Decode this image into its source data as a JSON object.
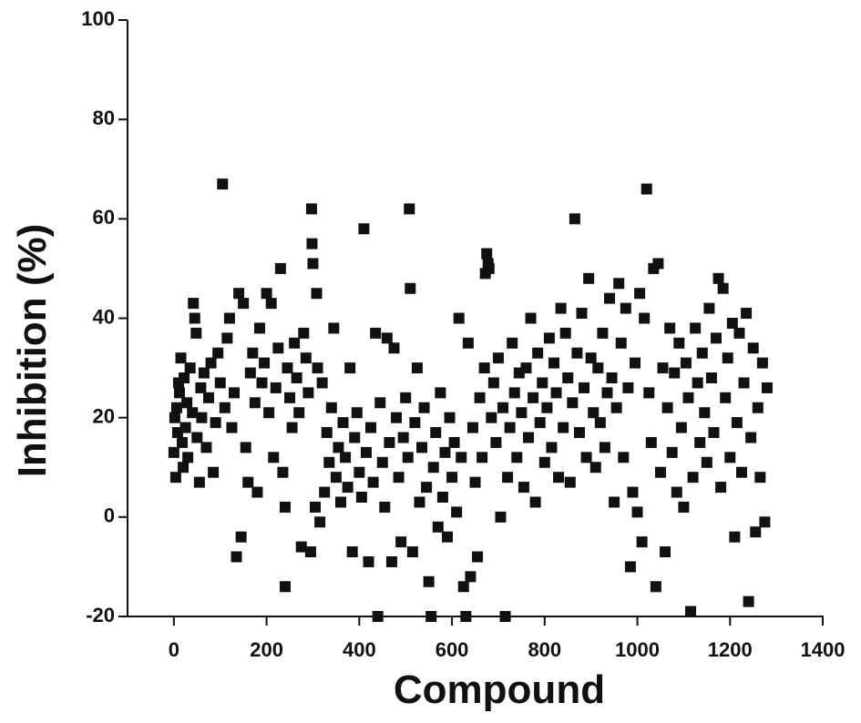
{
  "chart_data": {
    "type": "scatter",
    "xlabel": "Compound",
    "ylabel": "Inhibition (%)",
    "xlim": [
      -100,
      1400
    ],
    "ylim": [
      -20,
      100
    ],
    "xticks": [
      0,
      200,
      400,
      600,
      800,
      1000,
      1200,
      1400
    ],
    "yticks": [
      -20,
      0,
      20,
      40,
      60,
      80,
      100
    ],
    "series": [
      {
        "color": "#111111",
        "x": [
          0,
          2,
          4,
          6,
          8,
          10,
          12,
          15,
          18,
          20,
          22,
          25,
          28,
          30,
          35,
          40,
          42,
          45,
          48,
          50,
          55,
          58,
          60,
          65,
          70,
          75,
          80,
          85,
          90,
          95,
          100,
          105,
          110,
          115,
          120,
          125,
          130,
          135,
          140,
          145,
          150,
          155,
          160,
          165,
          170,
          175,
          180,
          185,
          190,
          195,
          200,
          205,
          210,
          215,
          220,
          225,
          230,
          235,
          240,
          240,
          245,
          250,
          255,
          260,
          265,
          270,
          275,
          280,
          285,
          290,
          295,
          297,
          298,
          300,
          305,
          308,
          310,
          315,
          320,
          325,
          330,
          335,
          340,
          345,
          350,
          355,
          360,
          365,
          370,
          375,
          380,
          385,
          390,
          395,
          400,
          405,
          410,
          415,
          420,
          425,
          430,
          435,
          440,
          445,
          450,
          455,
          460,
          465,
          470,
          475,
          480,
          485,
          490,
          495,
          500,
          505,
          508,
          510,
          515,
          520,
          525,
          530,
          535,
          540,
          545,
          550,
          555,
          560,
          565,
          570,
          575,
          580,
          585,
          590,
          595,
          600,
          605,
          610,
          615,
          620,
          625,
          630,
          635,
          640,
          645,
          650,
          655,
          660,
          665,
          670,
          672,
          675,
          678,
          680,
          685,
          690,
          695,
          700,
          705,
          710,
          715,
          720,
          725,
          730,
          735,
          740,
          745,
          750,
          755,
          760,
          765,
          770,
          775,
          780,
          785,
          790,
          795,
          800,
          805,
          810,
          815,
          820,
          825,
          830,
          835,
          840,
          845,
          850,
          855,
          860,
          865,
          870,
          875,
          880,
          885,
          890,
          895,
          900,
          905,
          910,
          915,
          920,
          925,
          930,
          935,
          940,
          945,
          950,
          955,
          960,
          965,
          970,
          975,
          980,
          985,
          990,
          995,
          1000,
          1005,
          1010,
          1015,
          1020,
          1025,
          1030,
          1035,
          1040,
          1045,
          1050,
          1055,
          1060,
          1065,
          1070,
          1075,
          1080,
          1085,
          1090,
          1095,
          1100,
          1105,
          1110,
          1115,
          1120,
          1125,
          1130,
          1135,
          1140,
          1145,
          1150,
          1155,
          1160,
          1165,
          1170,
          1175,
          1180,
          1185,
          1190,
          1195,
          1200,
          1205,
          1210,
          1215,
          1220,
          1225,
          1230,
          1235,
          1240,
          1245,
          1250,
          1255,
          1260,
          1265,
          1270,
          1275,
          1280
        ],
        "y": [
          13,
          20,
          8,
          22,
          17,
          27,
          25,
          32,
          15,
          10,
          28,
          18,
          23,
          12,
          30,
          21,
          43,
          40,
          37,
          16,
          7,
          26,
          20,
          29,
          14,
          24,
          31,
          9,
          19,
          33,
          27,
          67,
          22,
          36,
          40,
          18,
          25,
          -8,
          45,
          -4,
          43,
          14,
          7,
          29,
          33,
          23,
          5,
          38,
          27,
          31,
          45,
          21,
          43,
          12,
          26,
          34,
          50,
          9,
          -14,
          2,
          30,
          24,
          18,
          35,
          28,
          21,
          -6,
          37,
          32,
          25,
          -7,
          62,
          55,
          51,
          2,
          45,
          30,
          -1,
          27,
          5,
          17,
          11,
          22,
          38,
          8,
          14,
          3,
          19,
          12,
          6,
          30,
          -7,
          16,
          21,
          9,
          4,
          58,
          13,
          -9,
          18,
          7,
          37,
          -20,
          23,
          11,
          2,
          36,
          15,
          -9,
          34,
          20,
          8,
          -5,
          16,
          24,
          12,
          62,
          46,
          -7,
          19,
          30,
          3,
          14,
          22,
          6,
          -13,
          -20,
          10,
          17,
          -2,
          25,
          4,
          13,
          -4,
          20,
          8,
          15,
          1,
          40,
          12,
          -14,
          -20,
          35,
          -12,
          18,
          7,
          -8,
          24,
          12,
          30,
          49,
          53,
          51,
          50,
          20,
          27,
          15,
          32,
          0,
          22,
          -20,
          8,
          18,
          35,
          25,
          12,
          29,
          21,
          6,
          30,
          16,
          40,
          24,
          3,
          33,
          19,
          27,
          11,
          22,
          36,
          14,
          31,
          25,
          8,
          42,
          18,
          37,
          28,
          7,
          23,
          60,
          33,
          17,
          41,
          26,
          12,
          48,
          32,
          21,
          10,
          30,
          19,
          37,
          14,
          25,
          44,
          28,
          3,
          22,
          47,
          35,
          12,
          42,
          26,
          -10,
          5,
          31,
          1,
          45,
          -5,
          40,
          66,
          25,
          15,
          50,
          -14,
          51,
          9,
          30,
          -7,
          22,
          38,
          13,
          29,
          5,
          35,
          18,
          2,
          31,
          24,
          -19,
          8,
          38,
          27,
          15,
          33,
          21,
          11,
          42,
          28,
          17,
          36,
          48,
          6,
          46,
          24,
          32,
          12,
          39,
          -4,
          19,
          37,
          9,
          27,
          41,
          -17,
          16,
          34,
          -3,
          22,
          8,
          31,
          -1,
          26
        ]
      }
    ]
  }
}
